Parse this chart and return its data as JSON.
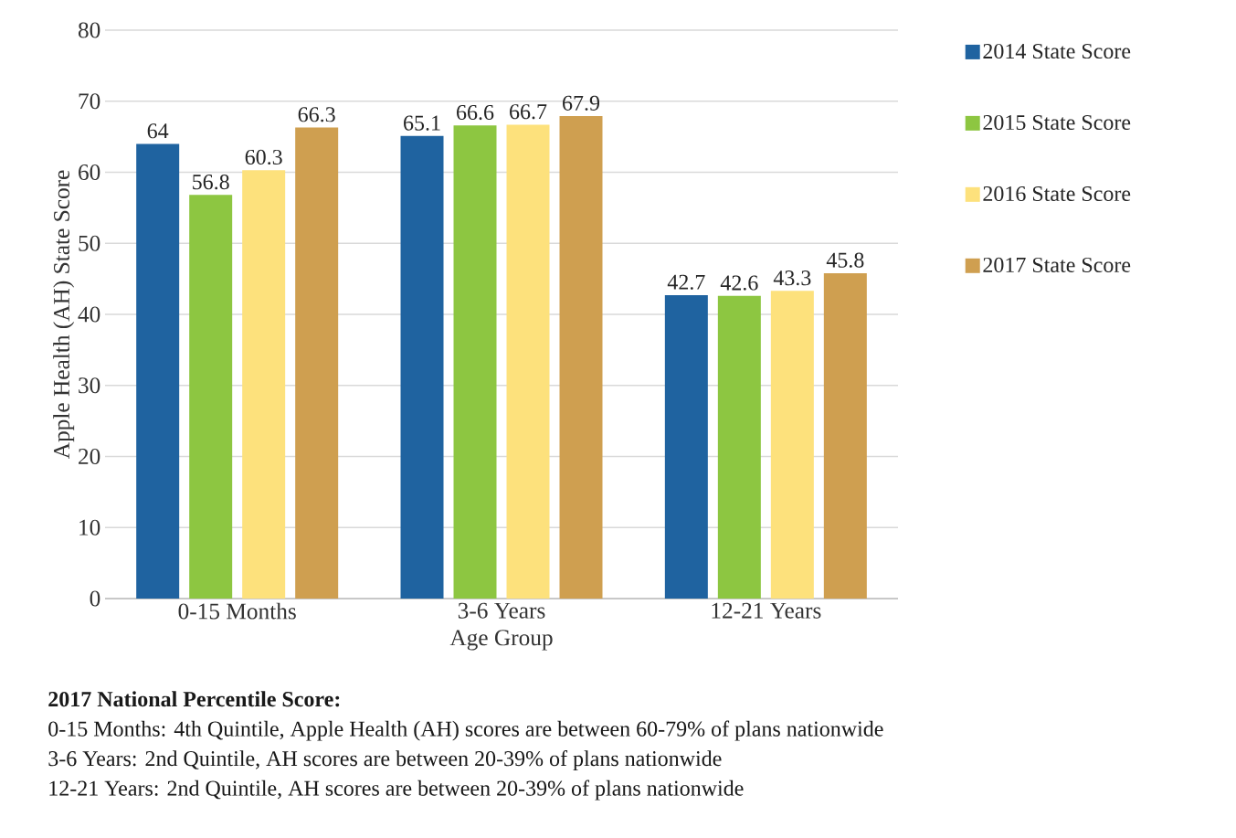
{
  "chart_data": {
    "type": "bar",
    "xlabel": "Age Group",
    "ylabel": "Apple Health (AH) State Score",
    "categories": [
      "0-15 Months",
      "3-6 Years",
      "12-21 Years"
    ],
    "series": [
      {
        "name": "2014 State Score",
        "color": "#1f63a0",
        "values": [
          64,
          65.1,
          42.7
        ]
      },
      {
        "name": "2015 State Score",
        "color": "#8dc641",
        "values": [
          56.8,
          66.6,
          42.6
        ]
      },
      {
        "name": "2016 State Score",
        "color": "#fde17c",
        "values": [
          60.3,
          66.7,
          43.3
        ]
      },
      {
        "name": "2017 State Score",
        "color": "#cf9f50",
        "values": [
          66.3,
          67.9,
          45.8
        ]
      }
    ],
    "ylim": [
      0,
      80
    ],
    "yticks": [
      0,
      10,
      20,
      30,
      40,
      50,
      60,
      70,
      80
    ],
    "grid": "y",
    "legend": "right",
    "data_labels": true,
    "annotations": [
      "2017 National Percentile Score:",
      "0-15 Months: 4th Quintile, Apple Health (AH) scores are between 60-79% of plans nationwide",
      "3-6 Years: 2nd Quintile, AH scores are between 20-39% of plans nationwide",
      "12-21 Years: 2nd Quintile, AH scores are between 20-39% of plans nationwide"
    ]
  }
}
